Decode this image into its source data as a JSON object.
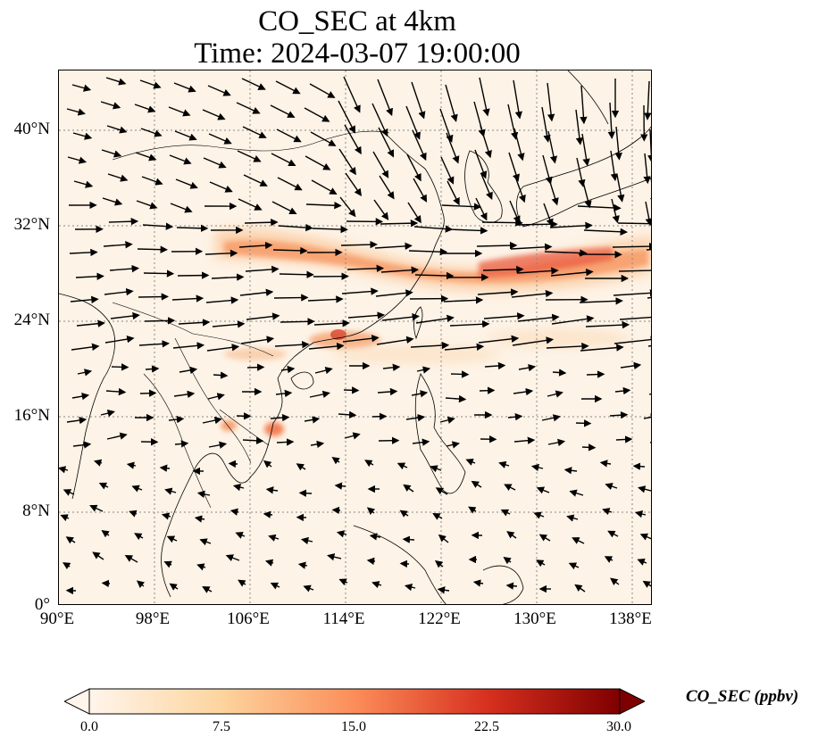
{
  "title": {
    "line1": "CO_SEC at 4km",
    "line2": "Time: 2024-03-07 19:00:00"
  },
  "axes": {
    "lat_labels": [
      "40°N",
      "32°N",
      "24°N",
      "16°N",
      "8°N",
      "0°"
    ],
    "lon_labels": [
      "90°E",
      "98°E",
      "106°E",
      "114°E",
      "122°E",
      "130°E",
      "138°E"
    ]
  },
  "colorbar": {
    "title": "CO_SEC (ppbv)",
    "ticks": [
      "0.0",
      "7.5",
      "15.0",
      "22.5",
      "30.0"
    ],
    "colors": [
      "#fff5eb",
      "#fdd49e",
      "#fc8d59",
      "#d7301f",
      "#7f0000"
    ]
  },
  "colors": {
    "frame": "#000000",
    "grid": "#888888",
    "background": "#fdf3e6"
  }
}
